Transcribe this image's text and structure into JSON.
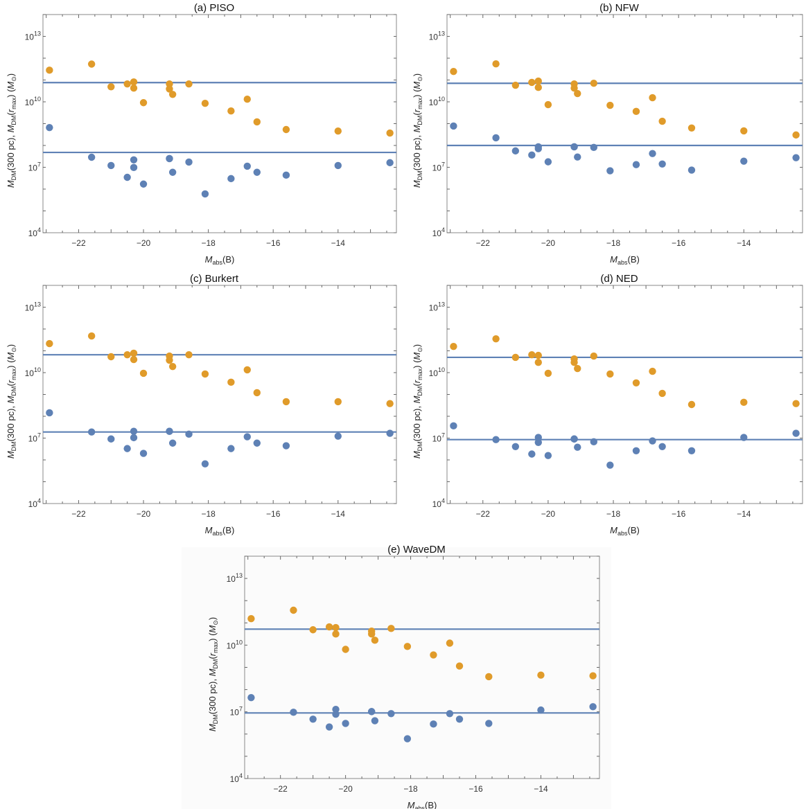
{
  "chart_data": {
    "type": "scatter",
    "x": [
      -22.9,
      -21.6,
      -21.0,
      -20.5,
      -20.3,
      -20.3,
      -20.0,
      -19.2,
      -19.2,
      -19.1,
      -18.6,
      -18.1,
      -17.3,
      -16.8,
      -16.5,
      -15.6,
      -14.0,
      -12.4
    ],
    "xlabel": "M_abs(B)",
    "xlabel_main": "M",
    "xlabel_sub": "abs",
    "xlabel_tail": "(B)",
    "ylabel": "M_DM(300 pc), M_DM(r_max) (M_⊙)",
    "xlim": [
      -23.1,
      -12.2
    ],
    "ylim_log10": [
      4,
      14
    ],
    "yscale": "log",
    "xticks": [
      -22,
      -20,
      -18,
      -16,
      -14
    ],
    "yticks": [
      {
        "base": "10",
        "exp": "4",
        "value": 4
      },
      {
        "base": "10",
        "exp": "7",
        "value": 7
      },
      {
        "base": "10",
        "exp": "10",
        "value": 10
      },
      {
        "base": "10",
        "exp": "13",
        "value": 13
      }
    ],
    "series_colors": {
      "M_DM(r_max)": "#e09b2a",
      "M_DM(300 pc)": "#5e81b5",
      "mean_line": "#5e81b5"
    },
    "panels": [
      {
        "title": "(a)  PISO",
        "series": [
          {
            "name": "M_DM(r_max)",
            "log10_values": [
              11.45,
              11.73,
              10.69,
              10.82,
              10.91,
              10.63,
              9.96,
              10.82,
              10.59,
              10.34,
              10.82,
              9.93,
              9.58,
              10.12,
              9.08,
              8.73,
              8.66,
              8.57
            ]
          },
          {
            "name": "M_DM(300 pc)",
            "log10_values": [
              8.82,
              7.46,
              7.08,
              6.54,
              7.34,
              6.99,
              6.23,
              7.4,
              7.4,
              6.77,
              7.24,
              5.78,
              6.48,
              7.05,
              6.77,
              6.64,
              7.08,
              7.21
            ]
          }
        ],
        "hlines_log10": [
          10.88,
          7.68
        ]
      },
      {
        "title": "(b)  NFW",
        "series": [
          {
            "name": "M_DM(r_max)",
            "log10_values": [
              11.39,
              11.74,
              10.76,
              10.89,
              10.95,
              10.66,
              9.87,
              10.82,
              10.63,
              10.38,
              10.85,
              9.84,
              9.56,
              10.19,
              9.11,
              8.8,
              8.67,
              8.48
            ]
          },
          {
            "name": "M_DM(300 pc)",
            "log10_values": [
              8.89,
              8.35,
              7.75,
              7.56,
              7.94,
              7.85,
              7.25,
              7.94,
              7.94,
              7.47,
              7.91,
              6.84,
              7.12,
              7.63,
              7.15,
              6.87,
              7.28,
              7.44
            ]
          }
        ],
        "hlines_log10": [
          10.85,
          8.0
        ]
      },
      {
        "title": "(c)  Burkert",
        "series": [
          {
            "name": "M_DM(r_max)",
            "log10_values": [
              11.33,
              11.68,
              10.73,
              10.82,
              10.89,
              10.6,
              9.97,
              10.76,
              10.57,
              10.28,
              10.82,
              9.94,
              9.56,
              10.13,
              9.08,
              8.67,
              8.67,
              8.58
            ]
          },
          {
            "name": "M_DM(300 pc)",
            "log10_values": [
              8.16,
              7.28,
              6.96,
              6.52,
              7.31,
              7.02,
              6.3,
              7.31,
              7.31,
              6.77,
              7.18,
              5.82,
              6.52,
              7.06,
              6.77,
              6.65,
              7.09,
              7.22
            ]
          }
        ],
        "hlines_log10": [
          10.82,
          7.28
        ]
      },
      {
        "title": "(d)  NED",
        "series": [
          {
            "name": "M_DM(r_max)",
            "log10_values": [
              11.2,
              11.55,
              10.7,
              10.82,
              10.79,
              10.47,
              9.97,
              10.63,
              10.47,
              10.19,
              10.76,
              9.94,
              9.53,
              10.06,
              9.05,
              8.54,
              8.64,
              8.58
            ]
          },
          {
            "name": "M_DM(300 pc)",
            "log10_values": [
              7.56,
              6.93,
              6.61,
              6.27,
              7.03,
              6.8,
              6.2,
              6.96,
              6.96,
              6.58,
              6.83,
              5.76,
              6.42,
              6.87,
              6.61,
              6.42,
              7.03,
              7.22
            ]
          }
        ],
        "hlines_log10": [
          10.7,
          6.93
        ]
      },
      {
        "title": "(e)  WaveDM",
        "series": [
          {
            "name": "M_DM(r_max)",
            "log10_values": [
              11.19,
              11.57,
              10.69,
              10.82,
              10.79,
              10.5,
              9.81,
              10.63,
              10.5,
              10.22,
              10.75,
              9.94,
              9.56,
              10.09,
              9.06,
              8.58,
              8.65,
              8.62
            ]
          },
          {
            "name": "M_DM(300 pc)",
            "log10_values": [
              7.64,
              6.98,
              6.67,
              6.32,
              7.11,
              6.89,
              6.48,
              7.01,
              7.01,
              6.6,
              6.92,
              5.79,
              6.45,
              6.92,
              6.67,
              6.48,
              7.08,
              7.23
            ]
          }
        ],
        "hlines_log10": [
          10.72,
          6.95
        ]
      }
    ]
  }
}
